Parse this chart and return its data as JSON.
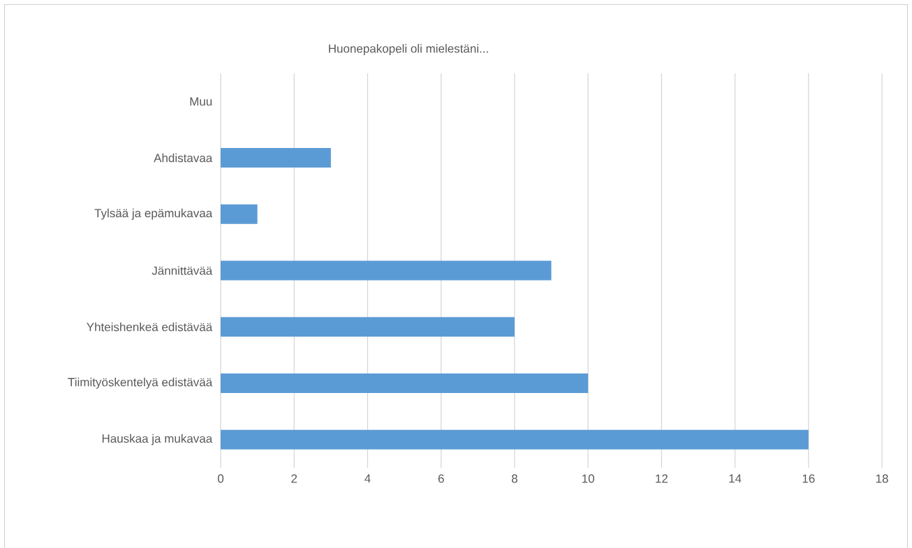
{
  "chart_data": {
    "type": "bar",
    "orientation": "horizontal",
    "title": "Huonepakopeli oli mielestäni...",
    "categories": [
      "Muu",
      "Ahdistavaa",
      "Tylsää ja epämukavaa",
      "Jännittävää",
      "Yhteishenkeä edistävää",
      "Tiimityöskentelyä edistävää",
      "Hauskaa ja mukavaa"
    ],
    "values": [
      0,
      3,
      1,
      9,
      8,
      10,
      16
    ],
    "color": "#5b9bd5",
    "xlim": [
      0,
      18
    ],
    "xticks": [
      0,
      2,
      4,
      6,
      8,
      10,
      12,
      14,
      16,
      18
    ],
    "grid": "x"
  }
}
